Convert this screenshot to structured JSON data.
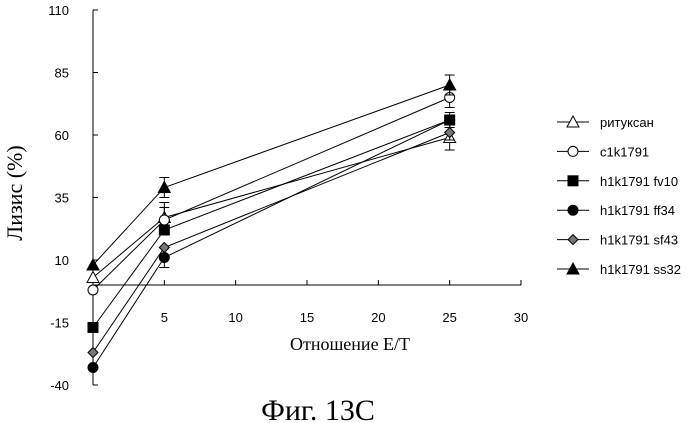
{
  "chart_data": {
    "type": "line",
    "caption": "Фиг. 13C",
    "xlabel": "Отношение E/T",
    "ylabel": "Лизис (%)",
    "xlim": [
      0,
      30
    ],
    "ylim": [
      -40,
      110
    ],
    "xticks": [
      5,
      10,
      15,
      20,
      25,
      30
    ],
    "yticks": [
      -40,
      -15,
      10,
      35,
      60,
      85,
      110
    ],
    "grid": false,
    "legend_position": "right",
    "x": [
      0,
      5,
      25
    ],
    "series": [
      {
        "name": "ритуксан",
        "marker": "triangle-open",
        "values": [
          3,
          27,
          59
        ],
        "errors": [
          0,
          6,
          5
        ]
      },
      {
        "name": "c1k1791",
        "marker": "circle-open",
        "values": [
          -2,
          26,
          75
        ],
        "errors": [
          0,
          5,
          4
        ]
      },
      {
        "name": "h1k1791 fv10",
        "marker": "square-filled",
        "values": [
          -17,
          22,
          66
        ],
        "errors": [
          0,
          0,
          0
        ]
      },
      {
        "name": "h1k1791 ff34",
        "marker": "circle-filled",
        "values": [
          -33,
          11,
          66
        ],
        "errors": [
          0,
          4,
          3
        ]
      },
      {
        "name": "h1k1791 sf43",
        "marker": "diamond-filled",
        "values": [
          -27,
          15,
          61
        ],
        "errors": [
          0,
          0,
          3
        ]
      },
      {
        "name": "h1k1791 ss32",
        "marker": "triangle-filled",
        "values": [
          8,
          39,
          80
        ],
        "errors": [
          0,
          4,
          4
        ]
      }
    ]
  }
}
